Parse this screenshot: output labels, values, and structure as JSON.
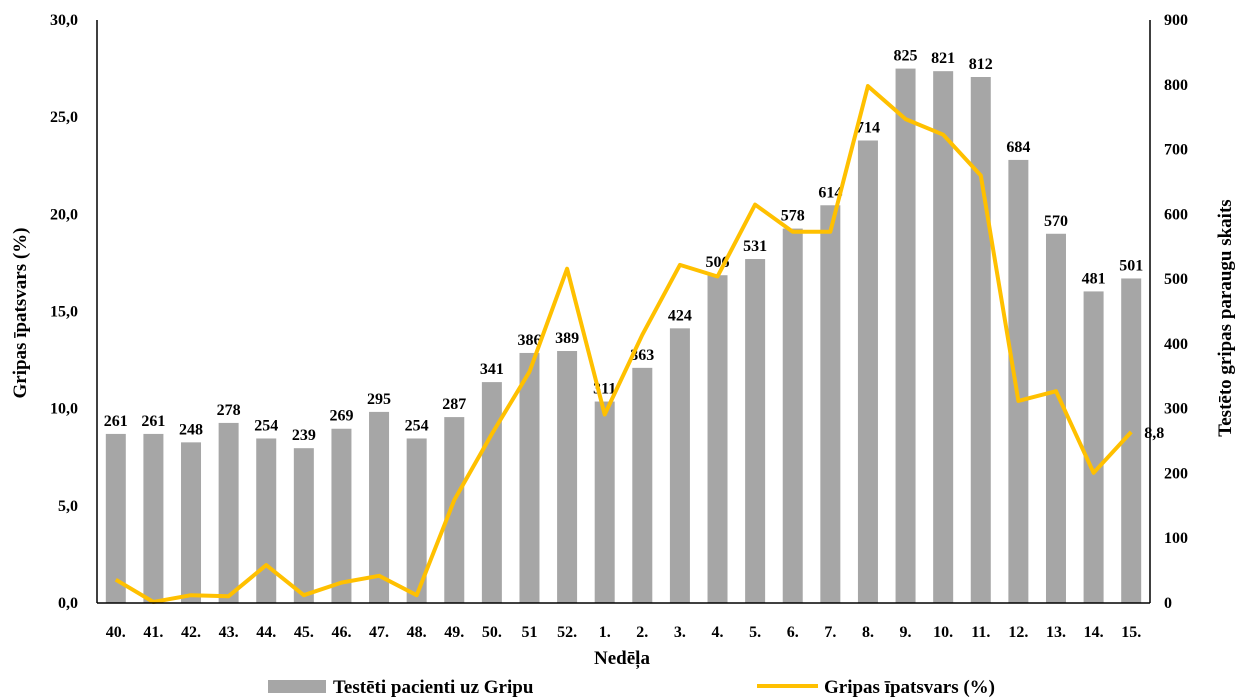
{
  "chart_data": {
    "type": "bar",
    "xlabel": "Nedēļa",
    "ylabel": "Gripas īpatsvars (%)",
    "y2label": "Testēto gripas paraugu skaits",
    "ylim": [
      0,
      30
    ],
    "yticks": [
      "0,0",
      "5,0",
      "10,0",
      "15,0",
      "20,0",
      "25,0",
      "30,0"
    ],
    "y2lim": [
      0,
      900
    ],
    "y2ticks": [
      "0",
      "100",
      "200",
      "300",
      "400",
      "500",
      "600",
      "700",
      "800",
      "900"
    ],
    "categories": [
      "40.",
      "41.",
      "42.",
      "43.",
      "44.",
      "45.",
      "46.",
      "47.",
      "48.",
      "49.",
      "50.",
      "51",
      "52.",
      "1.",
      "2.",
      "3.",
      "4.",
      "5.",
      "6.",
      "7.",
      "8.",
      "9.",
      "10.",
      "11.",
      "12.",
      "13.",
      "14.",
      "15."
    ],
    "series": [
      {
        "name": "Testēti pacienti uz Gripu",
        "type": "bar",
        "axis": "right",
        "color": "#a6a6a6",
        "values": [
          261,
          261,
          248,
          278,
          254,
          239,
          269,
          295,
          254,
          287,
          341,
          386,
          389,
          311,
          363,
          424,
          506,
          531,
          578,
          614,
          714,
          825,
          821,
          812,
          684,
          570,
          481,
          501
        ],
        "labels": [
          "261",
          "261",
          "248",
          "278",
          "254",
          "239",
          "269",
          "295",
          "254",
          "287",
          "341",
          "386",
          "389",
          "311",
          "363",
          "424",
          "506",
          "531",
          "578",
          "614",
          "714",
          "825",
          "821",
          "812",
          "684",
          "570",
          "481",
          "501"
        ]
      },
      {
        "name": "Gripas īpatsvars (%)",
        "type": "line",
        "axis": "left",
        "color": "#ffc000",
        "values": [
          1.2,
          0.05,
          0.4,
          0.35,
          1.95,
          0.4,
          1.05,
          1.4,
          0.4,
          5.3,
          8.7,
          11.9,
          17.2,
          9.7,
          13.8,
          17.4,
          16.8,
          20.5,
          19.1,
          19.1,
          26.6,
          24.9,
          24.1,
          22.0,
          10.4,
          10.9,
          6.7,
          8.8
        ],
        "end_label": "8,8"
      }
    ],
    "legend_position": "bottom",
    "grid": false
  }
}
